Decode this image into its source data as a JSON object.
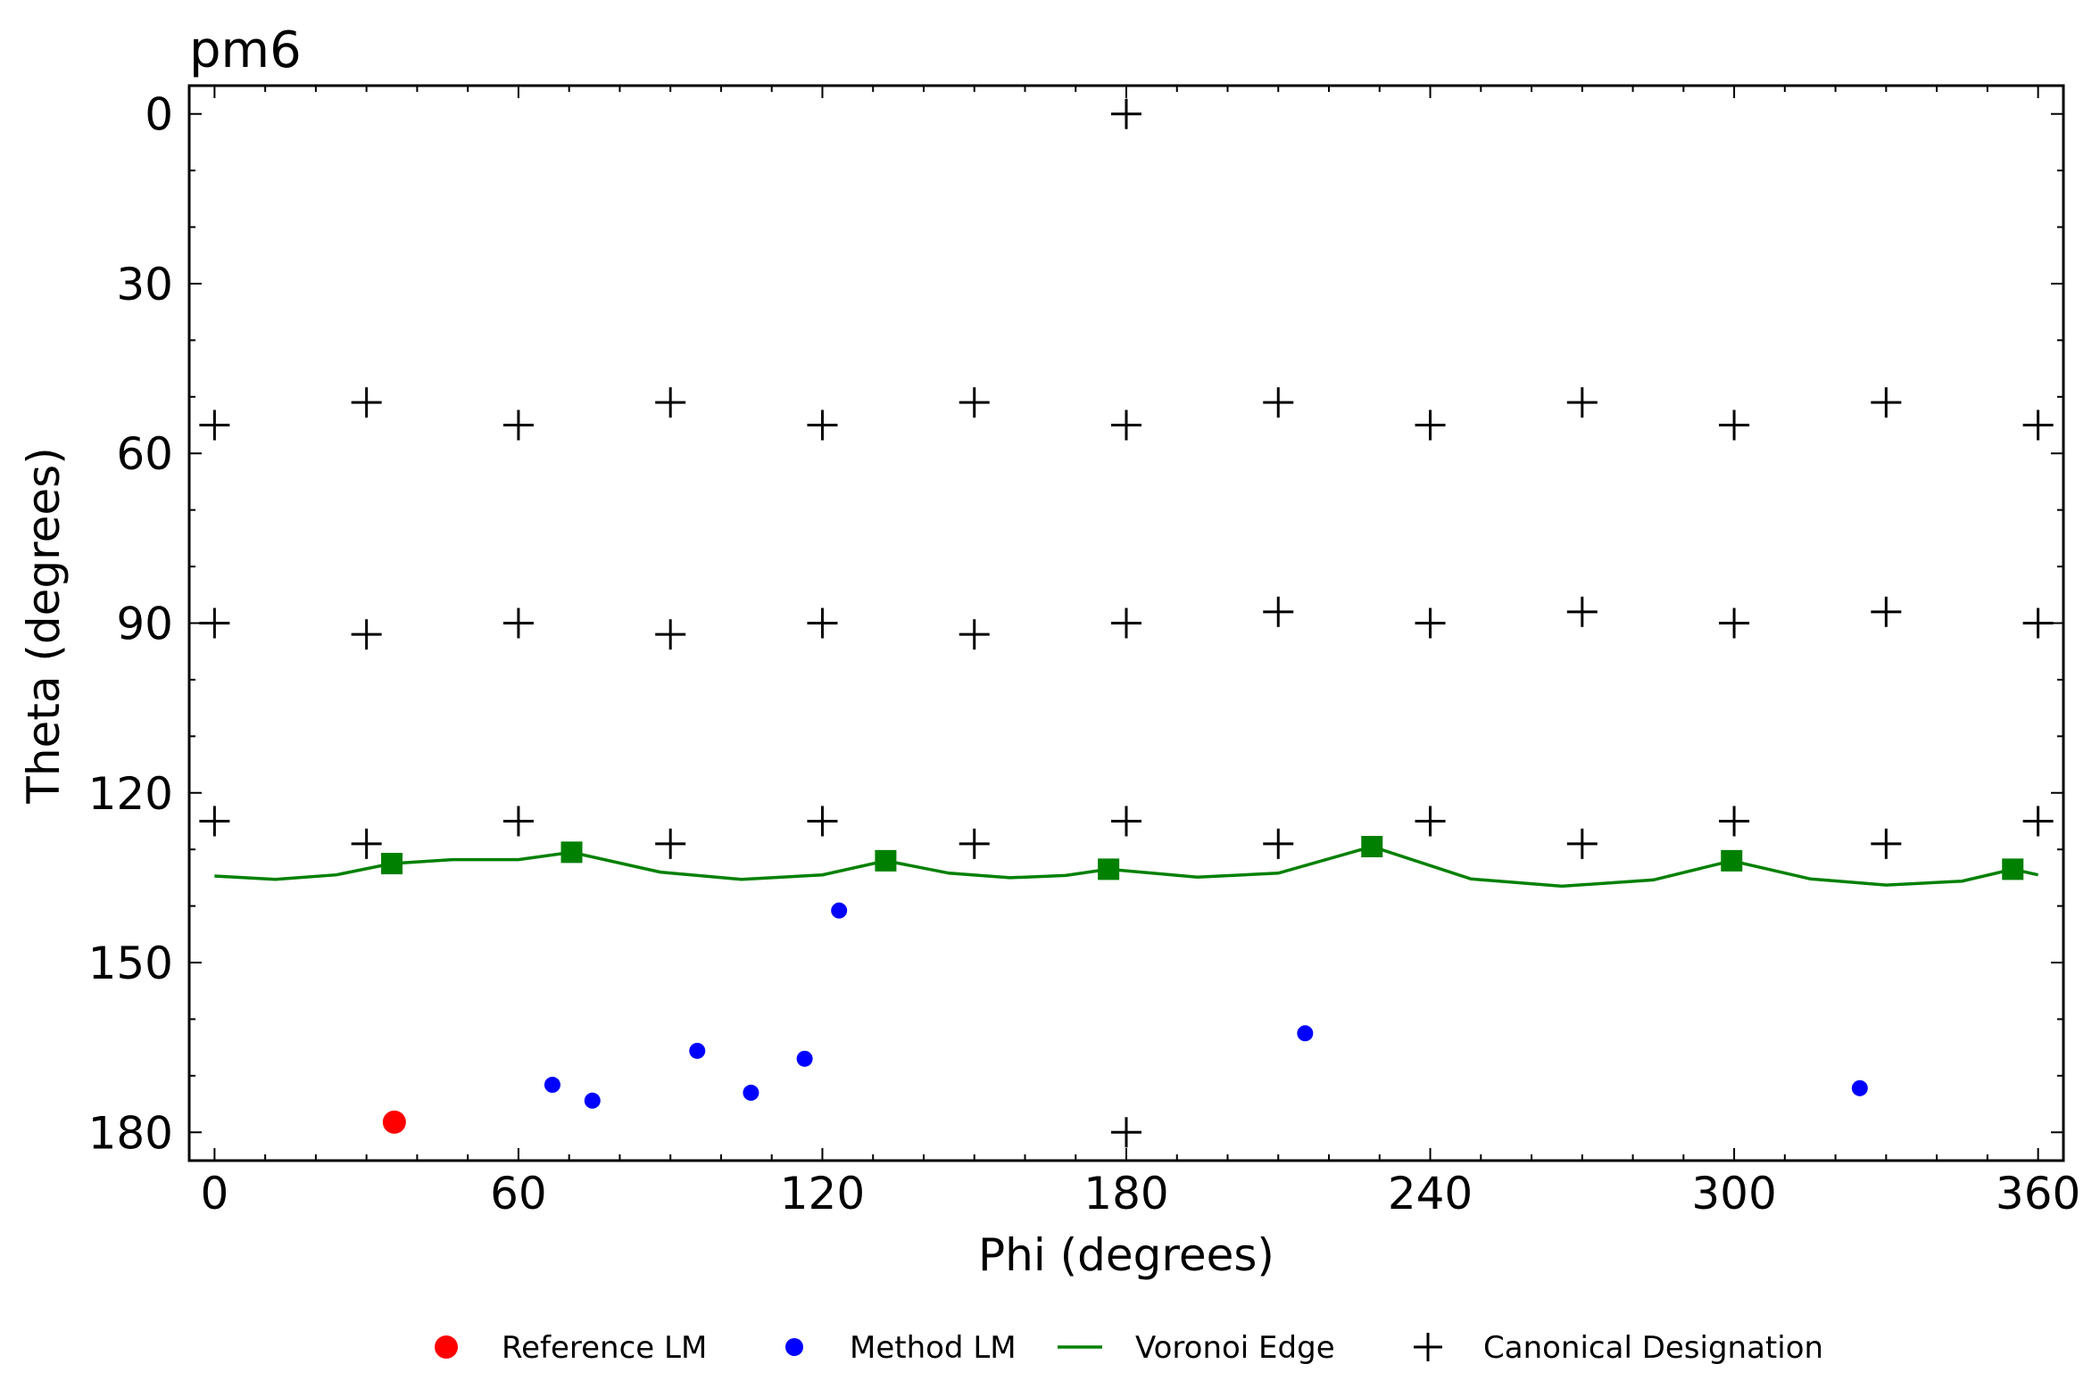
{
  "chart_data": {
    "type": "scatter",
    "title": "pm6",
    "xlabel": "Phi (degrees)",
    "ylabel": "Theta (degrees)",
    "xlim": [
      -5,
      365
    ],
    "ylim": [
      185,
      -5
    ],
    "y_inverted": true,
    "xticks": [
      0,
      60,
      120,
      180,
      240,
      300,
      360
    ],
    "yticks": [
      0,
      30,
      60,
      90,
      120,
      150,
      180
    ],
    "grid": false,
    "legend_position": "bottom",
    "colors": {
      "reference": "#ff0000",
      "method": "#0000ff",
      "voronoi": "#008000",
      "canonical": "#000000"
    },
    "legend": [
      {
        "label": "Reference LM",
        "marker": "dot-large",
        "color": "#ff0000"
      },
      {
        "label": "Method LM",
        "marker": "dot",
        "color": "#0000ff"
      },
      {
        "label": "Voronoi Edge",
        "marker": "line",
        "color": "#008000"
      },
      {
        "label": "Canonical Designation",
        "marker": "plus",
        "color": "#000000"
      }
    ],
    "series": [
      {
        "name": "Reference LM",
        "points": [
          [
            35.5,
            178.2
          ]
        ]
      },
      {
        "name": "Method LM",
        "points": [
          [
            123.3,
            140.8
          ],
          [
            66.7,
            171.6
          ],
          [
            74.6,
            174.4
          ],
          [
            95.3,
            165.6
          ],
          [
            105.9,
            173.0
          ],
          [
            116.5,
            167.0
          ],
          [
            215.3,
            162.5
          ],
          [
            324.8,
            172.2
          ]
        ]
      },
      {
        "name": "Voronoi Edge",
        "vertices": [
          [
            35,
            132.5
          ],
          [
            70.5,
            130.5
          ],
          [
            132.5,
            132.0
          ],
          [
            176.5,
            133.5
          ],
          [
            228.5,
            129.5
          ],
          [
            299.5,
            132.0
          ],
          [
            355,
            133.5
          ]
        ],
        "curve": [
          [
            0,
            134.7
          ],
          [
            12,
            135.3
          ],
          [
            24,
            134.5
          ],
          [
            35,
            132.5
          ],
          [
            47,
            131.8
          ],
          [
            60,
            131.8
          ],
          [
            70.5,
            130.5
          ],
          [
            88,
            134.0
          ],
          [
            104,
            135.3
          ],
          [
            120,
            134.5
          ],
          [
            132.5,
            132.0
          ],
          [
            145,
            134.2
          ],
          [
            157,
            135.0
          ],
          [
            168,
            134.6
          ],
          [
            176.5,
            133.5
          ],
          [
            194,
            134.9
          ],
          [
            210,
            134.2
          ],
          [
            228.5,
            129.5
          ],
          [
            248,
            135.2
          ],
          [
            266,
            136.5
          ],
          [
            284,
            135.4
          ],
          [
            299.5,
            132.0
          ],
          [
            315,
            135.2
          ],
          [
            330,
            136.3
          ],
          [
            345,
            135.6
          ],
          [
            355,
            133.5
          ],
          [
            360,
            134.5
          ]
        ]
      },
      {
        "name": "Canonical Designation",
        "points": [
          [
            180,
            0
          ],
          [
            0,
            55
          ],
          [
            30,
            51
          ],
          [
            60,
            55
          ],
          [
            90,
            51
          ],
          [
            120,
            55
          ],
          [
            150,
            51
          ],
          [
            180,
            55
          ],
          [
            210,
            51
          ],
          [
            240,
            55
          ],
          [
            270,
            51
          ],
          [
            300,
            55
          ],
          [
            330,
            51
          ],
          [
            360,
            55
          ],
          [
            0,
            90
          ],
          [
            30,
            92
          ],
          [
            60,
            90
          ],
          [
            90,
            92
          ],
          [
            120,
            90
          ],
          [
            150,
            92
          ],
          [
            180,
            90
          ],
          [
            210,
            88
          ],
          [
            240,
            90
          ],
          [
            270,
            88
          ],
          [
            300,
            90
          ],
          [
            330,
            88
          ],
          [
            360,
            90
          ],
          [
            0,
            125
          ],
          [
            30,
            129
          ],
          [
            60,
            125
          ],
          [
            90,
            129
          ],
          [
            120,
            125
          ],
          [
            150,
            129
          ],
          [
            180,
            125
          ],
          [
            210,
            129
          ],
          [
            240,
            125
          ],
          [
            270,
            129
          ],
          [
            300,
            125
          ],
          [
            330,
            129
          ],
          [
            360,
            125
          ],
          [
            180,
            180
          ]
        ]
      }
    ]
  }
}
